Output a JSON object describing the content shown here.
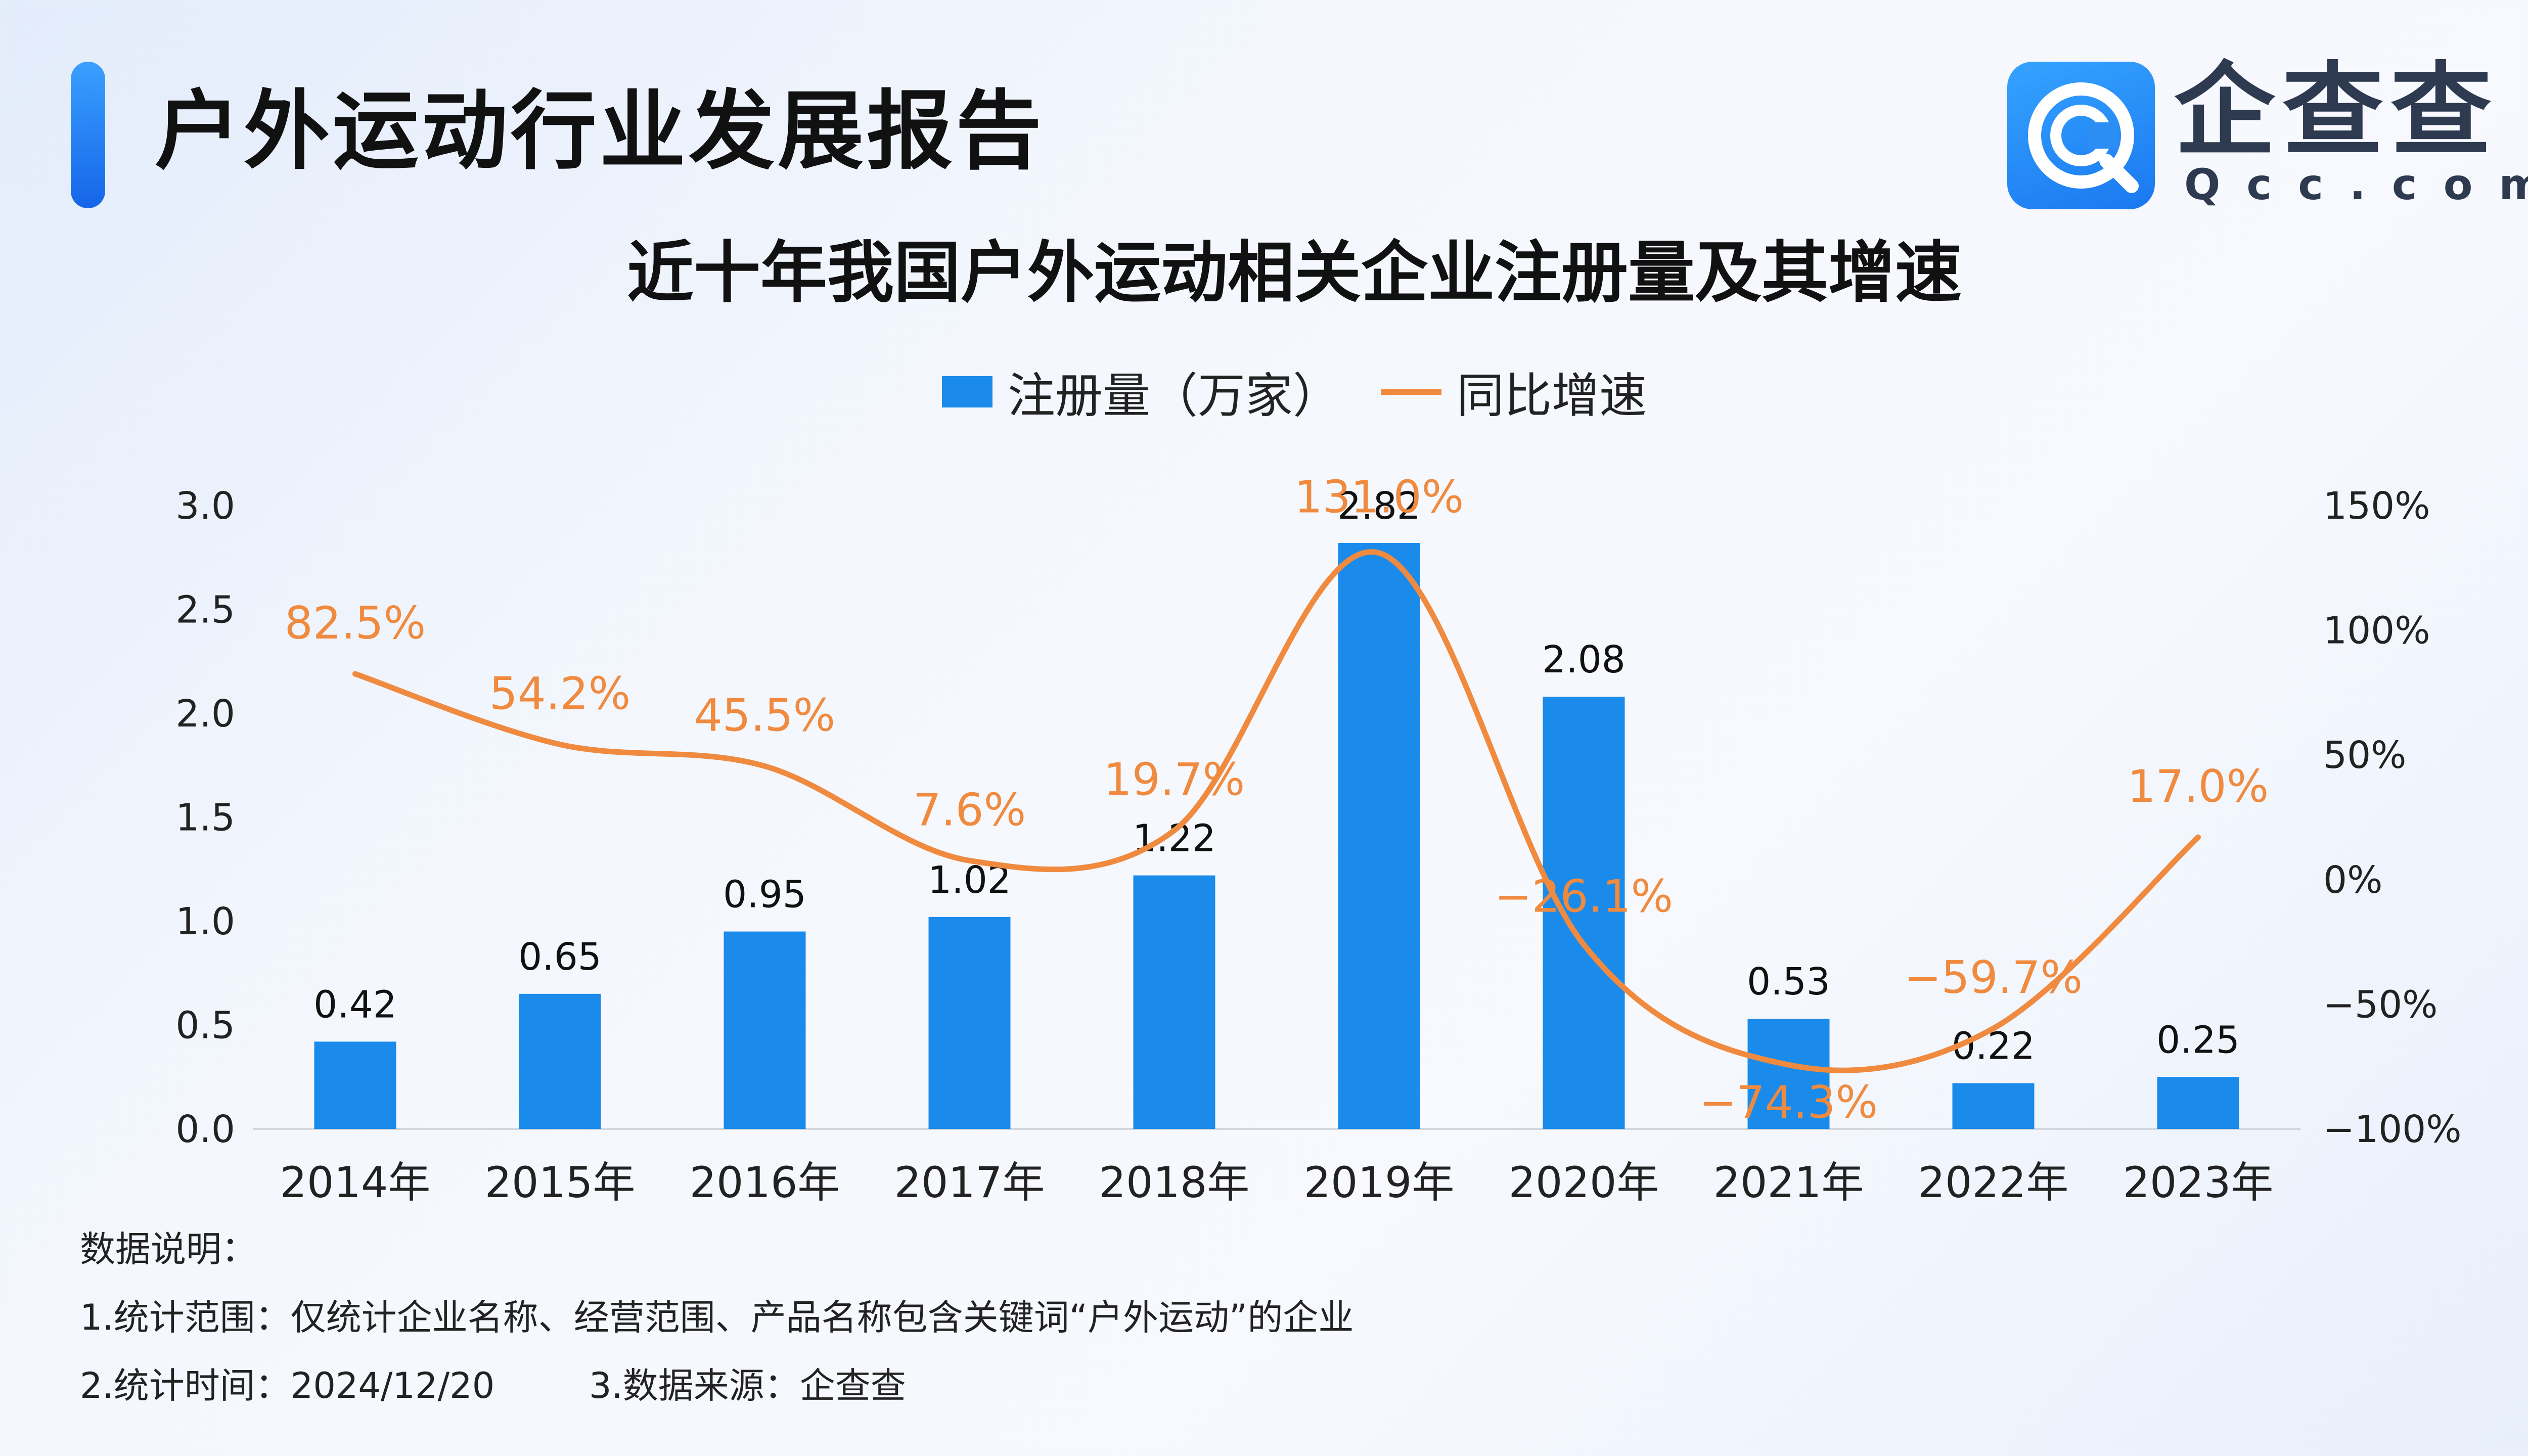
{
  "header": {
    "report_title": "户外运动行业发展报告",
    "logo_name_cn": "企查查",
    "logo_name_en": "Qcc.com"
  },
  "colors": {
    "bar": "#1a8bea",
    "line": "#ef8a3f",
    "accent": "#1f7bf0"
  },
  "chart_data": {
    "type": "bar",
    "title": "近十年我国户外运动相关企业注册量及其增速",
    "categories": [
      "2014年",
      "2015年",
      "2016年",
      "2017年",
      "2018年",
      "2019年",
      "2020年",
      "2021年",
      "2022年",
      "2023年"
    ],
    "series": [
      {
        "name": "注册量（万家）",
        "type": "bar",
        "axis": "left",
        "values": [
          0.42,
          0.65,
          0.95,
          1.02,
          1.22,
          2.82,
          2.08,
          0.53,
          0.22,
          0.25
        ],
        "labels": [
          "0.42",
          "0.65",
          "0.95",
          "1.02",
          "1.22",
          "2.82",
          "2.08",
          "0.53",
          "0.22",
          "0.25"
        ]
      },
      {
        "name": "同比增速",
        "type": "line",
        "axis": "right",
        "values": [
          82.5,
          54.2,
          45.5,
          7.6,
          19.7,
          131.0,
          -26.1,
          -74.3,
          -59.7,
          17.0
        ],
        "labels": [
          "82.5%",
          "54.2%",
          "45.5%",
          "7.6%",
          "19.7%",
          "131.0%",
          "−26.1%",
          "−74.3%",
          "−59.7%",
          "17.0%"
        ]
      }
    ],
    "y_left": {
      "range": [
        0,
        3.0
      ],
      "ticks": [
        "0.0",
        "0.5",
        "1.0",
        "1.5",
        "2.0",
        "2.5",
        "3.0"
      ]
    },
    "y_right": {
      "range": [
        -100,
        150
      ],
      "ticks": [
        "−100%",
        "−50%",
        "0%",
        "50%",
        "100%",
        "150%"
      ]
    },
    "grid": false,
    "legend_position": "top-center"
  },
  "notes": {
    "heading": "数据说明：",
    "scope": "1.统计范围：仅统计企业名称、经营范围、产品名称包含关键词“户外运动”的企业",
    "time": "2.统计时间：2024/12/20",
    "source": "3.数据来源：企查查"
  }
}
